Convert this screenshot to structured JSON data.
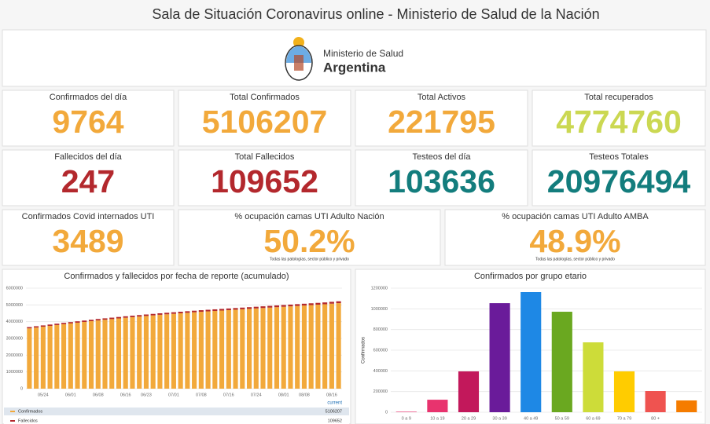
{
  "header": {
    "title": "Sala de Situación Coronavirus online - Ministerio de Salud de la Nación"
  },
  "logo": {
    "line1": "Ministerio de Salud",
    "line2": "Argentina"
  },
  "kpis": [
    {
      "label": "Confirmados del día",
      "value": "9764",
      "color": "#f2a93b"
    },
    {
      "label": "Total Confirmados",
      "value": "5106207",
      "color": "#f2a93b"
    },
    {
      "label": "Total Activos",
      "value": "221795",
      "color": "#f2a93b"
    },
    {
      "label": "Total recuperados",
      "value": "4774760",
      "color": "#cbd852"
    },
    {
      "label": "Fallecidos del día",
      "value": "247",
      "color": "#b3282d"
    },
    {
      "label": "Total Fallecidos",
      "value": "109652",
      "color": "#b3282d"
    },
    {
      "label": "Testeos del día",
      "value": "103636",
      "color": "#137d7d"
    },
    {
      "label": "Testeos Totales",
      "value": "20976494",
      "color": "#137d7d"
    },
    {
      "label": "Confirmados Covid internados UTI",
      "value": "3489",
      "color": "#f2a93b"
    },
    {
      "label": "% ocupación camas UTI Adulto Nación",
      "value": "50.2%",
      "color": "#f2a93b",
      "note": "Todas las patologías, sector público y privado"
    },
    {
      "label": "% ocupación camas UTI Adulto AMBA",
      "value": "48.9%",
      "color": "#f2a93b",
      "note": "Todas las patologías, sector público y privado"
    }
  ],
  "charts": [
    {
      "type": "bar",
      "stacked": true,
      "title": "Confirmados y fallecidos por fecha de reporte (acumulado)",
      "categories": [
        null,
        null,
        "05/24",
        null,
        null,
        null,
        "06/01",
        null,
        null,
        null,
        "06/08",
        null,
        null,
        null,
        "06/16",
        null,
        null,
        "06/23",
        null,
        null,
        null,
        "07/01",
        null,
        null,
        null,
        "07/08",
        null,
        null,
        null,
        "07/16",
        null,
        null,
        null,
        "07/24",
        null,
        null,
        null,
        "08/01",
        null,
        null,
        "08/08",
        null,
        null,
        null,
        "08/16",
        null
      ],
      "series": [
        {
          "name": "Confirmados",
          "color": "#f2a93b",
          "values": [
            3600000,
            3650000,
            3700000,
            3750000,
            3800000,
            3850000,
            3895000,
            3940000,
            3985000,
            4030000,
            4075000,
            4115000,
            4155000,
            4195000,
            4235000,
            4270000,
            4305000,
            4340000,
            4375000,
            4410000,
            4440000,
            4470000,
            4500000,
            4530000,
            4560000,
            4590000,
            4615000,
            4640000,
            4665000,
            4690000,
            4715000,
            4740000,
            4765000,
            4790000,
            4815000,
            4840000,
            4865000,
            4890000,
            4915000,
            4940000,
            4965000,
            4990000,
            5015000,
            5040000,
            5075000,
            5106207
          ]
        },
        {
          "name": "Fallecidos",
          "color": "#b3282d",
          "values": [
            76000,
            76750,
            77500,
            78250,
            79000,
            79750,
            80500,
            81250,
            82000,
            82750,
            83500,
            84250,
            85000,
            85750,
            86500,
            87250,
            88000,
            88750,
            89500,
            90250,
            91000,
            91750,
            92500,
            93250,
            94000,
            94750,
            95500,
            96250,
            97000,
            97750,
            98500,
            99250,
            100000,
            100750,
            101500,
            102250,
            103000,
            103750,
            104500,
            105250,
            106000,
            106750,
            107500,
            108250,
            109000,
            109652
          ]
        }
      ],
      "legend_header": "current",
      "ylim": [
        0,
        6000000
      ],
      "yticks": [
        0,
        1000000,
        2000000,
        3000000,
        4000000,
        5000000,
        6000000
      ],
      "grid": true
    },
    {
      "type": "bar",
      "title": "Confirmados por grupo etario",
      "ylabel": "Confirmados",
      "categories": [
        "0 a 9",
        "10 a 19",
        "20 a 29",
        "30 a 39",
        "40 a 49",
        "50 a 59",
        "60 a 69",
        "70 a 79",
        "80 +",
        null
      ],
      "values": [
        5000,
        121000,
        395000,
        1055000,
        1162000,
        972000,
        676000,
        395000,
        205000,
        114000
      ],
      "colors": [
        "#e8336e",
        "#e8336e",
        "#c2185b",
        "#6a1b9a",
        "#1e88e5",
        "#6aa820",
        "#cddc39",
        "#ffcc00",
        "#ef5350",
        "#f57c00"
      ],
      "ylim": [
        0,
        1200000
      ],
      "yticks": [
        0,
        200000,
        400000,
        600000,
        800000,
        1000000,
        1200000
      ],
      "grid": true
    }
  ]
}
